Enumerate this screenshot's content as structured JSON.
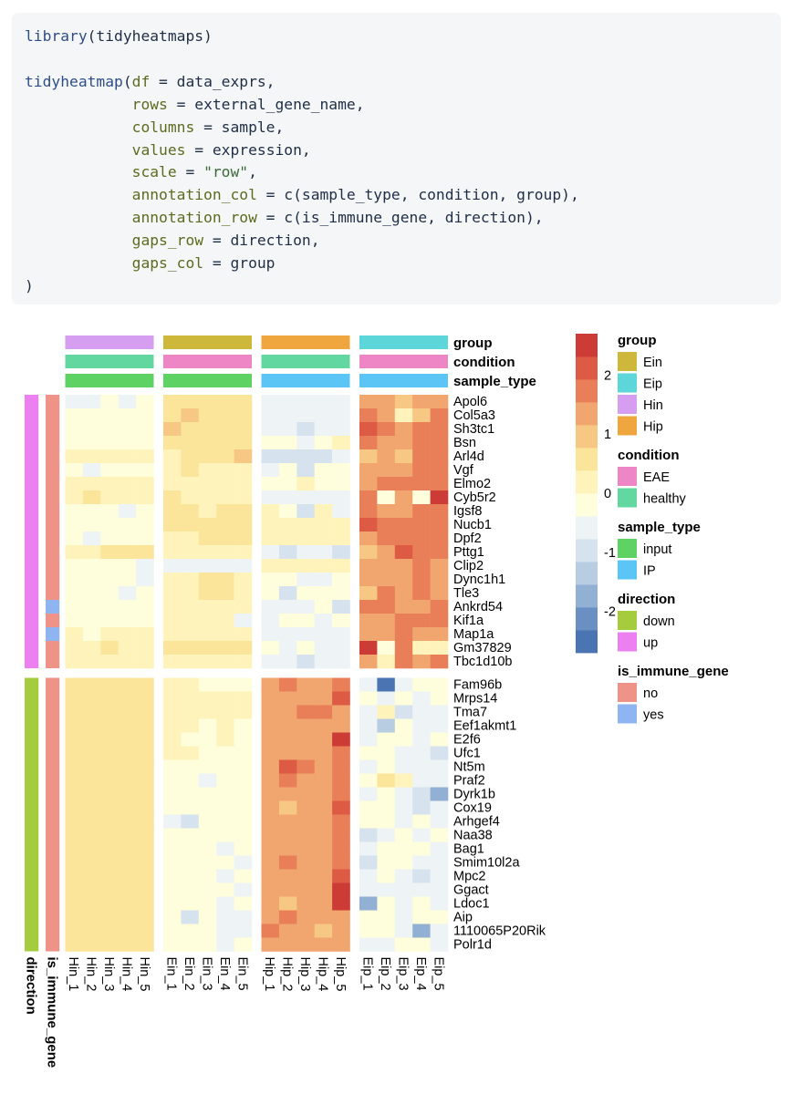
{
  "code": {
    "lines": [
      [
        {
          "t": "fn",
          "v": "library"
        },
        {
          "t": "plain",
          "v": "(tidyheatmaps)"
        }
      ],
      [],
      [
        {
          "t": "fn",
          "v": "tidyheatmap"
        },
        {
          "t": "plain",
          "v": "("
        },
        {
          "t": "arg",
          "v": "df"
        },
        {
          "t": "plain",
          "v": " = data_exprs,"
        }
      ],
      [
        {
          "t": "plain",
          "v": "            "
        },
        {
          "t": "arg",
          "v": "rows"
        },
        {
          "t": "plain",
          "v": " = external_gene_name,"
        }
      ],
      [
        {
          "t": "plain",
          "v": "            "
        },
        {
          "t": "arg",
          "v": "columns"
        },
        {
          "t": "plain",
          "v": " = sample,"
        }
      ],
      [
        {
          "t": "plain",
          "v": "            "
        },
        {
          "t": "arg",
          "v": "values"
        },
        {
          "t": "plain",
          "v": " = expression,"
        }
      ],
      [
        {
          "t": "plain",
          "v": "            "
        },
        {
          "t": "arg",
          "v": "scale"
        },
        {
          "t": "plain",
          "v": " = "
        },
        {
          "t": "str",
          "v": "\"row\""
        },
        {
          "t": "plain",
          "v": ","
        }
      ],
      [
        {
          "t": "plain",
          "v": "            "
        },
        {
          "t": "arg",
          "v": "annotation_col"
        },
        {
          "t": "plain",
          "v": " = c(sample_type, condition, group),"
        }
      ],
      [
        {
          "t": "plain",
          "v": "            "
        },
        {
          "t": "arg",
          "v": "annotation_row"
        },
        {
          "t": "plain",
          "v": " = c(is_immune_gene, direction),"
        }
      ],
      [
        {
          "t": "plain",
          "v": "            "
        },
        {
          "t": "arg",
          "v": "gaps_row"
        },
        {
          "t": "plain",
          "v": " = direction,"
        }
      ],
      [
        {
          "t": "plain",
          "v": "            "
        },
        {
          "t": "arg",
          "v": "gaps_col"
        },
        {
          "t": "plain",
          "v": " = group"
        }
      ],
      [
        {
          "t": "plain",
          "v": ")"
        }
      ]
    ]
  },
  "chart_data": {
    "type": "heatmap",
    "columns": [
      "Hin_1",
      "Hin_2",
      "Hin_3",
      "Hin_4",
      "Hin_5",
      "Ein_1",
      "Ein_2",
      "Ein_3",
      "Ein_4",
      "Ein_5",
      "Hip_1",
      "Hip_2",
      "Hip_3",
      "Hip_4",
      "Hip_5",
      "Eip_1",
      "Eip_2",
      "Eip_3",
      "Eip_4",
      "Eip_5"
    ],
    "column_gaps_after": [
      5,
      10,
      15
    ],
    "rows": [
      "Apol6",
      "Col5a3",
      "Sh3tc1",
      "Bsn",
      "Arl4d",
      "Vgf",
      "Elmo2",
      "Cyb5r2",
      "Igsf8",
      "Nucb1",
      "Dpf2",
      "Pttg1",
      "Clip2",
      "Dync1h1",
      "Tle3",
      "Ankrd54",
      "Kif1a",
      "Map1a",
      "Gm37829",
      "Tbc1d10b",
      "Fam96b",
      "Mrps14",
      "Tma7",
      "Eef1akmt1",
      "E2f6",
      "Ufc1",
      "Nt5m",
      "Praf2",
      "Dyrk1b",
      "Cox19",
      "Arhgef4",
      "Naa38",
      "Bag1",
      "Smim10l2a",
      "Mpc2",
      "Ggact",
      "Ldoc1",
      "Aip",
      "1110065P20Rik",
      "Polr1d"
    ],
    "row_gaps_after": [
      20
    ],
    "values": [
      [
        -0.5,
        -0.5,
        -0.3,
        -0.4,
        -0.2,
        0.6,
        0.7,
        0.6,
        0.6,
        0.6,
        -0.7,
        -0.7,
        -0.7,
        -0.7,
        -0.6,
        1.5,
        1.3,
        1.0,
        1.2,
        1.4
      ],
      [
        -0.3,
        -0.2,
        -0.3,
        -0.3,
        -0.2,
        0.5,
        0.9,
        0.6,
        0.6,
        0.6,
        -0.7,
        -0.7,
        -0.7,
        -0.6,
        -0.6,
        1.6,
        1.4,
        0.1,
        1.0,
        1.7
      ],
      [
        -0.3,
        -0.2,
        -0.2,
        -0.3,
        -0.2,
        0.8,
        0.7,
        0.6,
        0.6,
        0.6,
        -0.7,
        -0.7,
        -0.8,
        -0.6,
        -0.6,
        2.1,
        1.6,
        1.5,
        1.7,
        1.7
      ],
      [
        -0.2,
        -0.3,
        -0.2,
        -0.3,
        -0.1,
        0.6,
        0.5,
        0.4,
        0.6,
        0.6,
        -0.3,
        -0.3,
        -0.4,
        -0.3,
        0.3,
        1.9,
        1.5,
        1.3,
        1.6,
        1.9
      ],
      [
        0.2,
        0.0,
        0.2,
        0.3,
        0.3,
        0.3,
        0.4,
        0.6,
        0.4,
        1.0,
        -0.8,
        -0.8,
        -1.0,
        -0.8,
        -0.6,
        1.0,
        1.3,
        1.1,
        1.9,
        1.9
      ],
      [
        -0.2,
        -0.6,
        -0.2,
        -0.2,
        -0.1,
        0.3,
        0.4,
        0.2,
        0.3,
        0.2,
        -0.4,
        -0.3,
        -0.8,
        -0.3,
        -0.2,
        1.4,
        1.4,
        1.4,
        1.8,
        1.8
      ],
      [
        0.1,
        0.0,
        0.1,
        0.2,
        0.2,
        0.1,
        0.3,
        0.2,
        0.3,
        0.2,
        -0.2,
        -0.1,
        0.0,
        -0.2,
        -0.1,
        1.5,
        1.6,
        1.6,
        1.7,
        1.7
      ],
      [
        0.3,
        0.5,
        0.3,
        0.2,
        0.1,
        0.5,
        0.3,
        0.1,
        0.3,
        0.2,
        -0.4,
        -0.6,
        -0.5,
        -0.6,
        -0.4,
        1.9,
        -0.3,
        1.5,
        -0.2,
        2.6
      ],
      [
        -0.3,
        -0.3,
        -0.3,
        -0.4,
        -0.3,
        0.4,
        0.4,
        0.3,
        0.5,
        0.4,
        0.0,
        -0.2,
        -0.8,
        0.0,
        -0.5,
        1.6,
        1.4,
        1.4,
        1.7,
        1.9
      ],
      [
        -0.3,
        -0.2,
        -0.3,
        -0.3,
        -0.2,
        0.5,
        0.4,
        0.4,
        0.6,
        0.4,
        0.3,
        0.2,
        0.3,
        0.3,
        0.2,
        2.3,
        1.7,
        1.6,
        1.8,
        1.7
      ],
      [
        -0.2,
        -0.5,
        -0.3,
        -0.3,
        -0.3,
        0.3,
        0.3,
        0.4,
        0.4,
        0.4,
        0.0,
        0.1,
        0.2,
        0.1,
        0.2,
        1.4,
        1.8,
        1.6,
        1.7,
        1.6
      ],
      [
        0.2,
        0.2,
        0.4,
        0.4,
        0.5,
        0.2,
        0.2,
        0.3,
        0.3,
        0.3,
        -0.6,
        -1.0,
        -0.6,
        -0.5,
        -1.0,
        0.9,
        1.5,
        2.3,
        1.8,
        1.6
      ],
      [
        -0.3,
        -0.3,
        -0.3,
        -0.3,
        -0.4,
        -0.6,
        -0.7,
        -0.6,
        -0.6,
        -0.6,
        0.2,
        0.1,
        0.1,
        0.3,
        0.2,
        1.2,
        1.2,
        1.3,
        1.8,
        1.4
      ],
      [
        -0.2,
        -0.2,
        -0.2,
        -0.3,
        -0.6,
        0.2,
        0.2,
        0.5,
        0.5,
        0.3,
        -0.3,
        -0.3,
        -0.4,
        -0.4,
        -0.2,
        1.3,
        1.3,
        1.3,
        1.8,
        1.4
      ],
      [
        -0.2,
        -0.2,
        -0.3,
        -0.4,
        -0.3,
        0.3,
        0.3,
        0.4,
        0.5,
        0.3,
        -0.2,
        -0.9,
        -0.2,
        -0.3,
        -0.3,
        1.1,
        1.6,
        1.5,
        1.9,
        1.4
      ],
      [
        -0.2,
        -0.2,
        -0.2,
        -0.2,
        -0.3,
        0.1,
        0.2,
        0.3,
        0.3,
        0.0,
        -0.4,
        -0.4,
        -0.4,
        -0.2,
        -0.8,
        1.7,
        1.6,
        1.4,
        1.5,
        1.6
      ],
      [
        -0.3,
        -0.3,
        -0.2,
        -0.3,
        -0.3,
        0.1,
        0.2,
        0.3,
        0.3,
        -0.4,
        -0.4,
        -0.3,
        -0.3,
        -0.4,
        -0.3,
        1.5,
        1.5,
        1.6,
        1.9,
        1.7
      ],
      [
        0.1,
        -0.1,
        0.0,
        0.1,
        0.0,
        0.1,
        0.2,
        0.1,
        0.2,
        0.1,
        -0.4,
        -0.4,
        -0.6,
        -0.4,
        -0.6,
        1.4,
        1.5,
        1.6,
        1.4,
        1.5
      ],
      [
        0.2,
        0.3,
        0.4,
        0.3,
        0.3,
        0.6,
        0.6,
        0.6,
        0.5,
        0.4,
        -0.3,
        -0.4,
        -0.3,
        -0.4,
        -0.4,
        2.6,
        -0.2,
        1.7,
        0.1,
        0.1
      ],
      [
        0.0,
        0.1,
        0.1,
        0.2,
        0.1,
        0.0,
        0.1,
        0.1,
        0.0,
        0.0,
        -0.4,
        -0.4,
        -0.9,
        -0.4,
        -0.6,
        1.2,
        0.3,
        1.6,
        1.2,
        1.6
      ],
      [
        0.6,
        0.5,
        0.6,
        0.7,
        0.7,
        0.1,
        0.0,
        -0.1,
        -0.1,
        -0.2,
        1.4,
        1.6,
        1.5,
        1.5,
        1.6,
        -0.5,
        -2.6,
        -0.7,
        -0.2,
        -0.3
      ],
      [
        0.6,
        0.6,
        0.7,
        0.7,
        0.7,
        0.3,
        0.2,
        0.1,
        0.0,
        0.0,
        1.3,
        1.5,
        1.3,
        1.4,
        2.0,
        -0.3,
        -0.5,
        -0.2,
        -0.5,
        -0.2
      ],
      [
        0.5,
        0.6,
        0.6,
        0.6,
        0.5,
        0.2,
        0.1,
        0.2,
        0.0,
        0.0,
        1.2,
        1.3,
        1.6,
        1.8,
        1.5,
        -0.4,
        0.0,
        -0.9,
        -0.5,
        -0.4
      ],
      [
        0.5,
        0.6,
        0.5,
        0.6,
        0.5,
        0.1,
        0.0,
        -0.1,
        0.0,
        -0.1,
        1.3,
        1.4,
        1.5,
        1.4,
        1.5,
        -0.5,
        -1.2,
        -0.3,
        -0.4,
        -0.5
      ],
      [
        0.5,
        0.5,
        0.5,
        0.6,
        0.4,
        0.0,
        -0.1,
        -0.1,
        0.0,
        -0.2,
        1.2,
        1.5,
        1.2,
        1.3,
        2.4,
        -0.4,
        -0.3,
        -0.2,
        -0.5,
        -0.3
      ],
      [
        0.5,
        0.5,
        0.5,
        0.5,
        0.7,
        0.0,
        0.0,
        -0.1,
        -0.2,
        -0.3,
        1.2,
        1.3,
        1.5,
        1.3,
        1.7,
        -0.3,
        -0.2,
        -0.4,
        -0.4,
        -1.1
      ],
      [
        0.5,
        0.4,
        0.5,
        0.5,
        0.5,
        -0.1,
        -0.1,
        -0.2,
        -0.3,
        -0.2,
        1.2,
        2.1,
        1.6,
        1.3,
        1.7,
        -0.5,
        -0.3,
        -0.5,
        -0.7,
        -0.4
      ],
      [
        0.5,
        0.5,
        0.5,
        0.6,
        0.5,
        -0.1,
        -0.3,
        -0.4,
        -0.2,
        -0.1,
        1.3,
        1.8,
        1.5,
        1.3,
        1.7,
        -0.1,
        0.6,
        0.1,
        -0.5,
        -0.6
      ],
      [
        0.7,
        0.6,
        0.6,
        0.6,
        0.6,
        -0.1,
        -0.1,
        -0.2,
        -0.3,
        -0.2,
        1.2,
        1.3,
        1.4,
        1.2,
        1.6,
        -0.4,
        -0.3,
        -0.6,
        -1.0,
        -1.6
      ],
      [
        0.7,
        0.6,
        0.6,
        0.6,
        0.7,
        -0.2,
        -0.1,
        -0.3,
        -0.3,
        -0.3,
        1.5,
        1.1,
        1.3,
        1.2,
        2.0,
        -0.3,
        -0.3,
        -0.4,
        -1.0,
        -0.5
      ],
      [
        0.5,
        0.6,
        0.5,
        0.6,
        0.6,
        -0.7,
        -0.9,
        -0.2,
        -0.1,
        -0.3,
        1.4,
        1.4,
        1.2,
        1.3,
        1.6,
        -0.2,
        -0.3,
        -0.4,
        -0.3,
        -0.5
      ],
      [
        0.6,
        0.6,
        0.6,
        0.7,
        0.7,
        -0.1,
        -0.2,
        -0.3,
        -0.3,
        -0.2,
        1.3,
        1.3,
        1.3,
        1.3,
        1.6,
        -1.0,
        -0.4,
        -0.3,
        -0.4,
        -0.3
      ],
      [
        0.5,
        0.5,
        0.5,
        0.6,
        0.6,
        -0.3,
        -0.3,
        -0.2,
        -0.4,
        -0.3,
        1.5,
        1.3,
        1.3,
        1.4,
        1.7,
        -0.4,
        -0.3,
        -0.3,
        -0.3,
        -0.4
      ],
      [
        0.7,
        0.7,
        0.7,
        0.7,
        0.7,
        -0.1,
        -0.2,
        -0.3,
        -0.3,
        -0.4,
        1.3,
        1.7,
        1.5,
        1.4,
        1.6,
        -0.8,
        -0.2,
        -0.2,
        -0.4,
        -0.4
      ],
      [
        0.6,
        0.6,
        0.7,
        0.7,
        0.6,
        -0.2,
        -0.2,
        -0.2,
        -0.4,
        -0.3,
        1.2,
        1.3,
        1.5,
        1.4,
        2.3,
        -0.4,
        -0.2,
        -0.4,
        -1.0,
        -0.4
      ],
      [
        0.6,
        0.6,
        0.6,
        0.6,
        0.5,
        -0.2,
        -0.3,
        -0.2,
        -0.3,
        -0.5,
        1.3,
        1.3,
        1.3,
        1.2,
        2.5,
        -0.5,
        -0.6,
        -0.6,
        -0.5,
        -0.4
      ],
      [
        0.5,
        0.6,
        0.6,
        0.6,
        0.6,
        -0.3,
        -0.3,
        -0.3,
        -0.4,
        -0.3,
        1.3,
        0.9,
        1.2,
        1.2,
        2.6,
        -1.7,
        -0.2,
        -0.4,
        -0.3,
        -0.4
      ],
      [
        0.6,
        0.5,
        0.6,
        0.5,
        0.5,
        -0.3,
        -0.8,
        -0.2,
        -0.5,
        -0.5,
        1.3,
        1.8,
        1.3,
        1.2,
        1.3,
        -0.3,
        -0.2,
        -0.6,
        -0.3,
        -0.3
      ],
      [
        0.6,
        0.6,
        0.6,
        0.6,
        0.6,
        -0.2,
        -0.3,
        -0.3,
        -0.4,
        -0.4,
        1.6,
        1.3,
        1.2,
        1.1,
        1.5,
        -0.3,
        -0.3,
        -0.7,
        -1.6,
        -0.4
      ],
      [
        0.6,
        0.6,
        0.7,
        0.6,
        0.6,
        -0.3,
        -0.3,
        -0.3,
        -0.4,
        -0.3,
        1.3,
        1.3,
        1.4,
        1.2,
        1.3,
        -0.4,
        -0.5,
        -0.3,
        -0.3,
        -0.4
      ]
    ],
    "color_scale": {
      "breaks": [
        -2,
        -1,
        0,
        1,
        2
      ],
      "range": [
        -2.7,
        2.7
      ],
      "colors": [
        "#4b74b2",
        "#6a8fc2",
        "#92b0d4",
        "#b8cde2",
        "#d6e3ee",
        "#eef3f5",
        "#fefddc",
        "#fef4bb",
        "#fbe59b",
        "#f6c884",
        "#f1a56f",
        "#e97f58",
        "#dd5a45",
        "#cd3b37"
      ]
    },
    "column_annotations": [
      {
        "name": "group",
        "values": [
          "Hin",
          "Hin",
          "Hin",
          "Hin",
          "Hin",
          "Ein",
          "Ein",
          "Ein",
          "Ein",
          "Ein",
          "Hip",
          "Hip",
          "Hip",
          "Hip",
          "Hip",
          "Eip",
          "Eip",
          "Eip",
          "Eip",
          "Eip"
        ]
      },
      {
        "name": "condition",
        "values": [
          "healthy",
          "healthy",
          "healthy",
          "healthy",
          "healthy",
          "EAE",
          "EAE",
          "EAE",
          "EAE",
          "EAE",
          "healthy",
          "healthy",
          "healthy",
          "healthy",
          "healthy",
          "EAE",
          "EAE",
          "EAE",
          "EAE",
          "EAE"
        ]
      },
      {
        "name": "sample_type",
        "values": [
          "input",
          "input",
          "input",
          "input",
          "input",
          "input",
          "input",
          "input",
          "input",
          "input",
          "IP",
          "IP",
          "IP",
          "IP",
          "IP",
          "IP",
          "IP",
          "IP",
          "IP",
          "IP"
        ]
      }
    ],
    "row_annotations": [
      {
        "name": "direction",
        "values": [
          "up",
          "up",
          "up",
          "up",
          "up",
          "up",
          "up",
          "up",
          "up",
          "up",
          "up",
          "up",
          "up",
          "up",
          "up",
          "up",
          "up",
          "up",
          "up",
          "up",
          "down",
          "down",
          "down",
          "down",
          "down",
          "down",
          "down",
          "down",
          "down",
          "down",
          "down",
          "down",
          "down",
          "down",
          "down",
          "down",
          "down",
          "down",
          "down",
          "down"
        ]
      },
      {
        "name": "is_immune_gene",
        "values": [
          "no",
          "no",
          "no",
          "no",
          "no",
          "no",
          "no",
          "no",
          "no",
          "no",
          "no",
          "no",
          "no",
          "no",
          "no",
          "yes",
          "no",
          "yes",
          "no",
          "no",
          "no",
          "no",
          "no",
          "no",
          "no",
          "no",
          "no",
          "no",
          "no",
          "no",
          "no",
          "no",
          "no",
          "no",
          "no",
          "no",
          "no",
          "no",
          "no",
          "no"
        ]
      }
    ],
    "legends": [
      {
        "title": "group",
        "items": [
          {
            "label": "Ein",
            "color": "#cdb83c"
          },
          {
            "label": "Eip",
            "color": "#5dd6da"
          },
          {
            "label": "Hin",
            "color": "#d59ef0"
          },
          {
            "label": "Hip",
            "color": "#f0a63f"
          }
        ]
      },
      {
        "title": "condition",
        "items": [
          {
            "label": "EAE",
            "color": "#ee86c5"
          },
          {
            "label": "healthy",
            "color": "#62d8a0"
          }
        ]
      },
      {
        "title": "sample_type",
        "items": [
          {
            "label": "input",
            "color": "#5ed364"
          },
          {
            "label": "IP",
            "color": "#5bc6f5"
          }
        ]
      },
      {
        "title": "direction",
        "items": [
          {
            "label": "down",
            "color": "#a4cc3c"
          },
          {
            "label": "up",
            "color": "#ed80f0"
          }
        ]
      },
      {
        "title": "is_immune_gene",
        "items": [
          {
            "label": "no",
            "color": "#ef9287"
          },
          {
            "label": "yes",
            "color": "#8fb4f2"
          }
        ]
      }
    ]
  }
}
